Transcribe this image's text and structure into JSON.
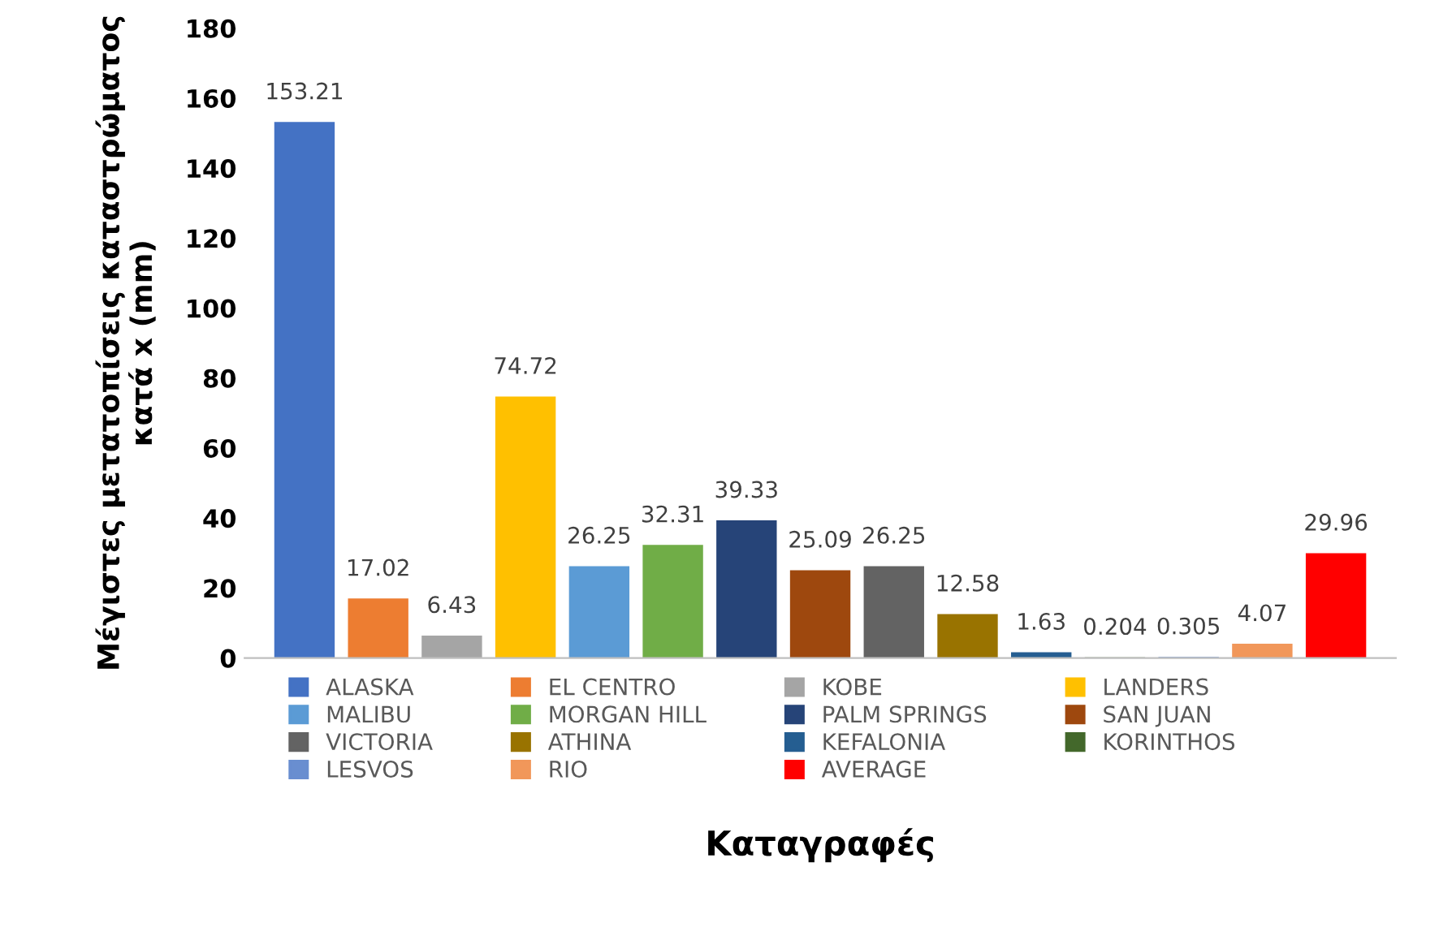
{
  "chart_data": {
    "type": "bar",
    "xlabel": "Καταγραφές",
    "ylabel": "Μέγιστες μετατοπίσεις καταστρώματος\nκατά x (mm)",
    "categories": [
      null
    ],
    "series": [
      {
        "name": "ALASKA",
        "color": "#4472c4",
        "values": [
          153.21
        ]
      },
      {
        "name": "EL CENTRO",
        "color": "#ed7d31",
        "values": [
          17.02
        ]
      },
      {
        "name": "KOBE",
        "color": "#a5a5a5",
        "values": [
          6.43
        ]
      },
      {
        "name": "LANDERS",
        "color": "#ffc000",
        "values": [
          74.72
        ]
      },
      {
        "name": "MALIBU",
        "color": "#5b9bd5",
        "values": [
          26.25
        ]
      },
      {
        "name": "MORGAN HILL",
        "color": "#70ad47",
        "values": [
          32.31
        ]
      },
      {
        "name": "PALM SPRINGS",
        "color": "#264478",
        "values": [
          39.33
        ]
      },
      {
        "name": "SAN JUAN",
        "color": "#9e480e",
        "values": [
          25.09
        ]
      },
      {
        "name": "VICTORIA",
        "color": "#636363",
        "values": [
          26.25
        ]
      },
      {
        "name": "ATHINA",
        "color": "#997300",
        "values": [
          12.58
        ]
      },
      {
        "name": "KEFALONIA",
        "color": "#255e91",
        "values": [
          1.63
        ]
      },
      {
        "name": "KORINTHOS",
        "color": "#43682b",
        "values": [
          0.204
        ]
      },
      {
        "name": "LESVOS",
        "color": "#698ed0",
        "values": [
          0.305
        ]
      },
      {
        "name": "RIO",
        "color": "#f1975a",
        "values": [
          4.07
        ]
      },
      {
        "name": "AVERAGE",
        "color": "#ff0000",
        "values": [
          29.96
        ]
      }
    ],
    "ylim": [
      0,
      180
    ],
    "yticks": [
      0,
      20,
      40,
      60,
      80,
      100,
      120,
      140,
      160,
      180
    ],
    "data_labels": true,
    "grid": false,
    "legend": "bottom"
  }
}
